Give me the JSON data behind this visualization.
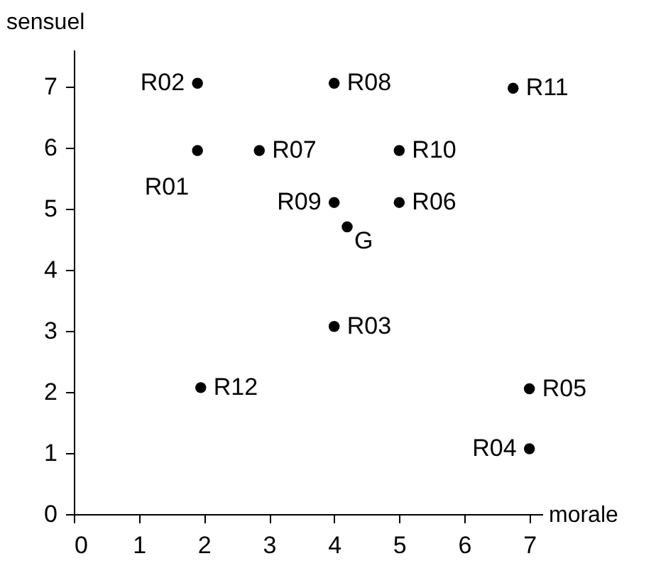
{
  "chart_data": {
    "type": "scatter",
    "xlabel": "morale",
    "ylabel": "sensuel",
    "xlim": [
      0,
      7.2
    ],
    "ylim": [
      0,
      7.6
    ],
    "xticks": [
      0,
      1,
      2,
      3,
      4,
      5,
      6,
      7
    ],
    "yticks": [
      0,
      1,
      2,
      3,
      4,
      5,
      6,
      7
    ],
    "grid": false,
    "marker": "circle",
    "series": [
      {
        "color": "#000000",
        "x": [
          1.9,
          1.9,
          4.0,
          7.0,
          7.0,
          5.0,
          2.85,
          4.0,
          4.0,
          5.0,
          6.75,
          1.95
        ],
        "values": [
          5.95,
          7.05,
          3.07,
          1.07,
          2.05,
          5.1,
          5.95,
          7.05,
          5.1,
          5.95,
          6.97,
          2.07
        ],
        "value_labels": [
          "R01",
          "R02",
          "R03",
          "R04",
          "R05",
          "R06",
          "R07",
          "R08",
          "R09",
          "R10",
          "R11",
          "R12"
        ]
      },
      {
        "name": "G",
        "color": "#000000",
        "x": [
          4.2
        ],
        "values": [
          4.7
        ]
      }
    ]
  }
}
